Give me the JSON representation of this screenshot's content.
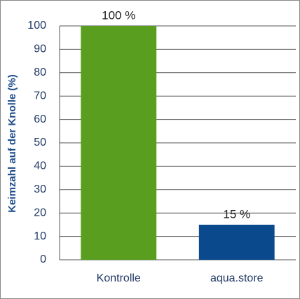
{
  "chart_data": {
    "type": "bar",
    "y_label": "Keimzahl auf der Knolle (%)",
    "categories": [
      "Kontrolle",
      "aqua.store"
    ],
    "values": [
      100,
      15
    ],
    "value_labels": [
      "100  %",
      "15  %"
    ],
    "colors": [
      "#5a9e1f",
      "#0a4a8c"
    ],
    "ylim": [
      0,
      100
    ],
    "yticks": [
      0,
      10,
      20,
      30,
      40,
      50,
      60,
      70,
      80,
      90,
      100
    ],
    "grid": true
  }
}
